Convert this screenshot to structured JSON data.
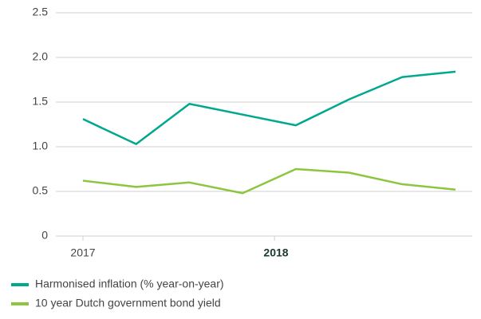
{
  "chart_data": {
    "type": "line",
    "categories": [
      null,
      null,
      null,
      null,
      null,
      null,
      null,
      null
    ],
    "xlim": [
      0,
      7
    ],
    "xticks": [
      {
        "value": 0,
        "label": "2017"
      },
      {
        "value": 3.6,
        "label": "2018"
      }
    ],
    "series": [
      {
        "name": "Harmonised inflation (% year-on-year)",
        "color": "#00a88f",
        "values": [
          1.31,
          1.03,
          1.48,
          1.36,
          1.24,
          1.53,
          1.78,
          1.84
        ]
      },
      {
        "name": "10 year Dutch government bond yield",
        "color": "#8cc63f",
        "values": [
          0.62,
          0.55,
          0.6,
          0.48,
          0.75,
          0.71,
          0.58,
          0.52
        ]
      }
    ],
    "ylim": [
      0,
      2.5
    ],
    "yticks": [
      0,
      0.5,
      {
        "value": 1,
        "label": "1.0"
      },
      1.5,
      {
        "value": 2,
        "label": "2.0"
      },
      2.5
    ],
    "grid": true
  }
}
